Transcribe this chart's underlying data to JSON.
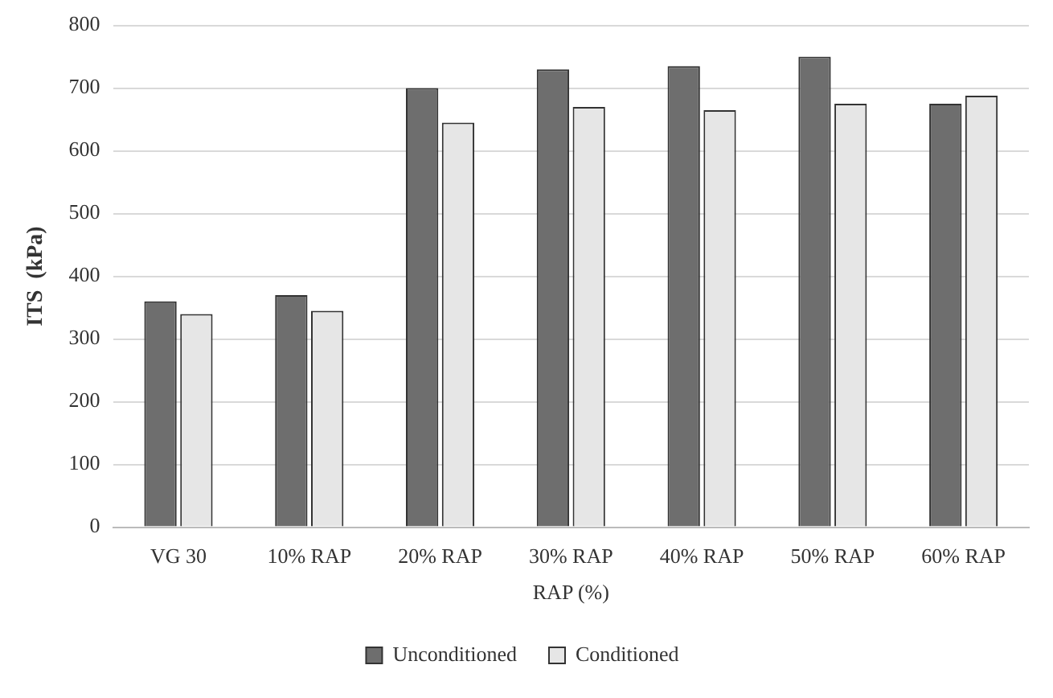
{
  "chart_data": {
    "type": "bar",
    "xlabel": "RAP (%)",
    "ylabel": "ITS  (kPa)",
    "categories": [
      "VG 30",
      "10% RAP",
      "20% RAP",
      "30% RAP",
      "40% RAP",
      "50% RAP",
      "60% RAP"
    ],
    "series": [
      {
        "name": "Unconditioned",
        "color": "#6e6e6e",
        "values": [
          360,
          370,
          700,
          730,
          735,
          750,
          675
        ]
      },
      {
        "name": "Conditioned",
        "color": "#e6e6e6",
        "values": [
          340,
          345,
          645,
          670,
          665,
          675,
          688
        ]
      }
    ],
    "ylim": [
      0,
      800
    ],
    "yticks": [
      0,
      100,
      200,
      300,
      400,
      500,
      600,
      700,
      800
    ],
    "grid": "y",
    "legend": "bottom"
  }
}
